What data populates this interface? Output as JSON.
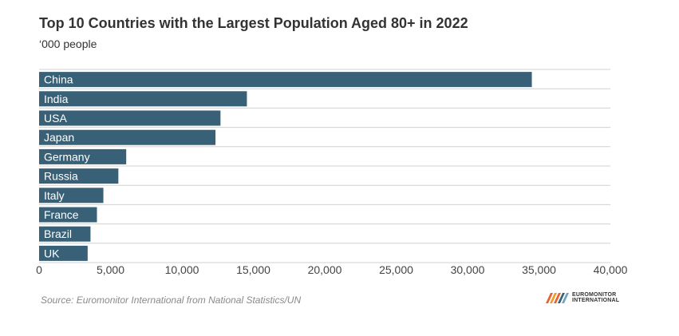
{
  "title": "Top 10 Countries with the Largest Population Aged 80+ in 2022",
  "subtitle": "‘000 people",
  "source": "Source: Euromonitor International from National Statistics/UN",
  "logo": {
    "line1": "EUROMONITOR",
    "line2": "INTERNATIONAL"
  },
  "colors": {
    "bar": "#386178",
    "grid": "#d0d0d0",
    "label": "#ffffff",
    "tick": "#444444"
  },
  "chart_data": {
    "type": "bar",
    "orientation": "horizontal",
    "title": "Top 10 Countries with the Largest Population Aged 80+ in 2022",
    "subtitle": "‘000 people",
    "categories": [
      "China",
      "India",
      "USA",
      "Japan",
      "Germany",
      "Russia",
      "Italy",
      "France",
      "Brazil",
      "UK"
    ],
    "values": [
      34500,
      14550,
      12700,
      12350,
      6100,
      5550,
      4500,
      4050,
      3600,
      3400
    ],
    "xlim": [
      0,
      40000
    ],
    "xticks": [
      "0",
      "5,000",
      "10,000",
      "15,000",
      "20,000",
      "25,000",
      "30,000",
      "35,000",
      "40,000"
    ],
    "grid": "horizontal",
    "legend": "none"
  }
}
